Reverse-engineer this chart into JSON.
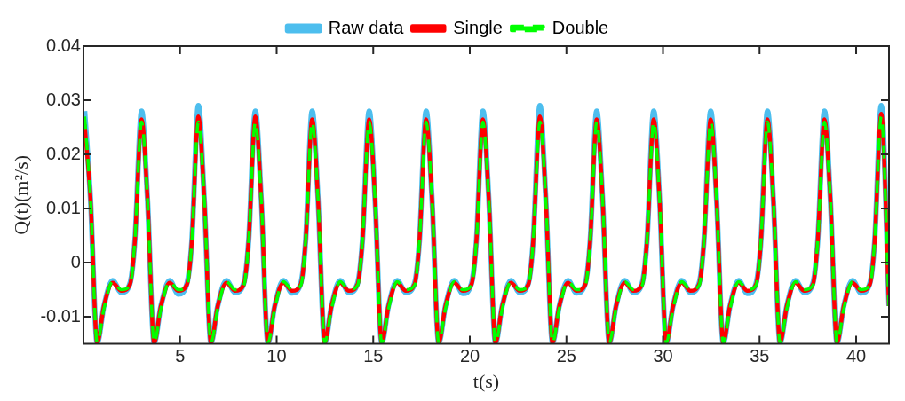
{
  "chart_data": {
    "type": "line",
    "xlabel": "t(s)",
    "ylabel": "Q(t)(m²/s)",
    "x": [
      0.06,
      0.36,
      0.71,
      1.06,
      1.51,
      1.96,
      2.41,
      2.66,
      3.01,
      3.31,
      3.66,
      4.01,
      4.46,
      4.91,
      5.36,
      5.61,
      5.95,
      6.25,
      6.6,
      6.95,
      7.4,
      7.85,
      8.3,
      8.55,
      8.9,
      9.2,
      9.55,
      9.9,
      10.35,
      10.8,
      11.25,
      11.5,
      11.84,
      12.14,
      12.49,
      12.84,
      13.29,
      13.74,
      14.19,
      14.44,
      14.79,
      15.09,
      15.44,
      15.79,
      16.24,
      16.69,
      17.14,
      17.39,
      17.74,
      18.04,
      18.39,
      18.74,
      19.19,
      19.64,
      20.09,
      20.34,
      20.68,
      20.98,
      21.33,
      21.68,
      22.13,
      22.58,
      23.03,
      23.28,
      23.63,
      23.93,
      24.28,
      24.63,
      25.08,
      25.53,
      25.98,
      26.23,
      26.57,
      26.87,
      27.22,
      27.57,
      28.02,
      28.47,
      28.92,
      29.17,
      29.52,
      29.82,
      30.17,
      30.52,
      30.97,
      31.42,
      31.87,
      32.12,
      32.47,
      32.77,
      33.12,
      33.47,
      33.92,
      34.37,
      34.82,
      35.07,
      35.41,
      35.71,
      36.06,
      36.41,
      36.86,
      37.31,
      37.76,
      38.01,
      38.36,
      38.66,
      39.01,
      39.36,
      39.81,
      40.26,
      40.71,
      40.96,
      41.3,
      41.7
    ],
    "series": [
      {
        "name": "Raw data",
        "color": "#4dbeee",
        "line_style": "solid",
        "values": [
          0.028,
          0.012,
          -0.0148,
          -0.008,
          -0.0033,
          -0.0055,
          -0.0038,
          0.004,
          0.028,
          0.012,
          -0.0148,
          -0.008,
          -0.0033,
          -0.0058,
          -0.0038,
          0.004,
          0.029,
          0.012,
          -0.0148,
          -0.008,
          -0.0033,
          -0.0055,
          -0.0038,
          0.004,
          0.028,
          0.012,
          -0.0148,
          -0.008,
          -0.0033,
          -0.0056,
          -0.0038,
          0.004,
          0.028,
          0.012,
          -0.0148,
          -0.008,
          -0.0033,
          -0.0055,
          -0.0038,
          0.004,
          0.028,
          0.012,
          -0.0148,
          -0.008,
          -0.0033,
          -0.0055,
          -0.0038,
          0.004,
          0.028,
          0.012,
          -0.0148,
          -0.008,
          -0.0033,
          -0.0057,
          -0.0038,
          0.004,
          0.028,
          0.012,
          -0.0148,
          -0.008,
          -0.0033,
          -0.0055,
          -0.0038,
          0.004,
          0.029,
          0.012,
          -0.0148,
          -0.008,
          -0.0033,
          -0.0056,
          -0.0038,
          0.004,
          0.028,
          0.012,
          -0.0148,
          -0.008,
          -0.0033,
          -0.0055,
          -0.0038,
          0.004,
          0.028,
          0.012,
          -0.0148,
          -0.008,
          -0.0033,
          -0.0055,
          -0.0038,
          0.004,
          0.028,
          0.012,
          -0.0148,
          -0.008,
          -0.0033,
          -0.0057,
          -0.0038,
          0.004,
          0.028,
          0.012,
          -0.0148,
          -0.008,
          -0.0033,
          -0.0055,
          -0.0038,
          0.004,
          0.028,
          0.012,
          -0.0148,
          -0.008,
          -0.0033,
          -0.0056,
          -0.0038,
          0.004,
          0.029,
          -0.008
        ]
      },
      {
        "name": "Single",
        "color": "#ff0000",
        "line_style": "solid",
        "values": [
          0.0255,
          0.012,
          -0.0148,
          -0.008,
          -0.0037,
          -0.0052,
          -0.004,
          0.004,
          0.0265,
          0.012,
          -0.0148,
          -0.008,
          -0.0037,
          -0.0052,
          -0.004,
          0.004,
          0.027,
          0.012,
          -0.0148,
          -0.008,
          -0.0037,
          -0.0052,
          -0.004,
          0.004,
          0.027,
          0.012,
          -0.0148,
          -0.008,
          -0.0037,
          -0.0052,
          -0.004,
          0.004,
          0.0265,
          0.012,
          -0.0148,
          -0.008,
          -0.0037,
          -0.0052,
          -0.004,
          0.004,
          0.0265,
          0.012,
          -0.0148,
          -0.008,
          -0.0037,
          -0.0052,
          -0.004,
          0.004,
          0.0265,
          0.012,
          -0.0148,
          -0.008,
          -0.0037,
          -0.0052,
          -0.004,
          0.004,
          0.0265,
          0.012,
          -0.0148,
          -0.008,
          -0.0037,
          -0.0052,
          -0.004,
          0.004,
          0.027,
          0.012,
          -0.0148,
          -0.008,
          -0.0037,
          -0.0052,
          -0.004,
          0.004,
          0.0265,
          0.012,
          -0.0148,
          -0.008,
          -0.0037,
          -0.0052,
          -0.004,
          0.004,
          0.0265,
          0.012,
          -0.0148,
          -0.008,
          -0.0037,
          -0.0052,
          -0.004,
          0.004,
          0.0265,
          0.012,
          -0.0148,
          -0.008,
          -0.0037,
          -0.0052,
          -0.004,
          0.004,
          0.0265,
          0.012,
          -0.0148,
          -0.008,
          -0.0037,
          -0.0052,
          -0.004,
          0.004,
          0.0265,
          0.012,
          -0.0148,
          -0.008,
          -0.0037,
          -0.0052,
          -0.004,
          0.004,
          0.0275,
          -0.008
        ]
      },
      {
        "name": "Double",
        "color": "#00ff00",
        "line_style": "dashed",
        "values": [
          0.027,
          0.012,
          -0.0148,
          -0.0085,
          -0.0035,
          -0.005,
          -0.0042,
          0.004,
          0.026,
          0.012,
          -0.0148,
          -0.0085,
          -0.0035,
          -0.005,
          -0.0042,
          0.004,
          0.026,
          0.012,
          -0.0148,
          -0.0085,
          -0.0035,
          -0.005,
          -0.0042,
          0.004,
          0.026,
          0.012,
          -0.0148,
          -0.0085,
          -0.0035,
          -0.005,
          -0.0042,
          0.004,
          0.026,
          0.012,
          -0.0148,
          -0.0085,
          -0.0035,
          -0.005,
          -0.0042,
          0.004,
          0.026,
          0.012,
          -0.0148,
          -0.0085,
          -0.0035,
          -0.005,
          -0.0042,
          0.004,
          0.026,
          0.012,
          -0.0148,
          -0.0085,
          -0.0035,
          -0.005,
          -0.0042,
          0.004,
          0.026,
          0.012,
          -0.0148,
          -0.0085,
          -0.0035,
          -0.005,
          -0.0042,
          0.004,
          0.026,
          0.012,
          -0.0148,
          -0.0085,
          -0.0035,
          -0.005,
          -0.0042,
          0.004,
          0.026,
          0.012,
          -0.0148,
          -0.0085,
          -0.0035,
          -0.005,
          -0.0042,
          0.004,
          0.026,
          0.012,
          -0.0148,
          -0.0085,
          -0.0035,
          -0.005,
          -0.0042,
          0.004,
          0.026,
          0.012,
          -0.0148,
          -0.0085,
          -0.0035,
          -0.005,
          -0.0042,
          0.004,
          0.026,
          0.012,
          -0.0148,
          -0.0085,
          -0.0035,
          -0.005,
          -0.0042,
          0.004,
          0.026,
          0.012,
          -0.0148,
          -0.0085,
          -0.0035,
          -0.005,
          -0.0042,
          0.004,
          0.027,
          -0.008
        ]
      }
    ],
    "xlim": [
      0,
      41.7
    ],
    "xticks": [
      5,
      10,
      15,
      20,
      25,
      30,
      35,
      40
    ],
    "ylim": [
      -0.015,
      0.04
    ],
    "yticks": [
      -0.01,
      0,
      0.01,
      0.02,
      0.03,
      0.04
    ],
    "grid": false,
    "legend": "top"
  }
}
